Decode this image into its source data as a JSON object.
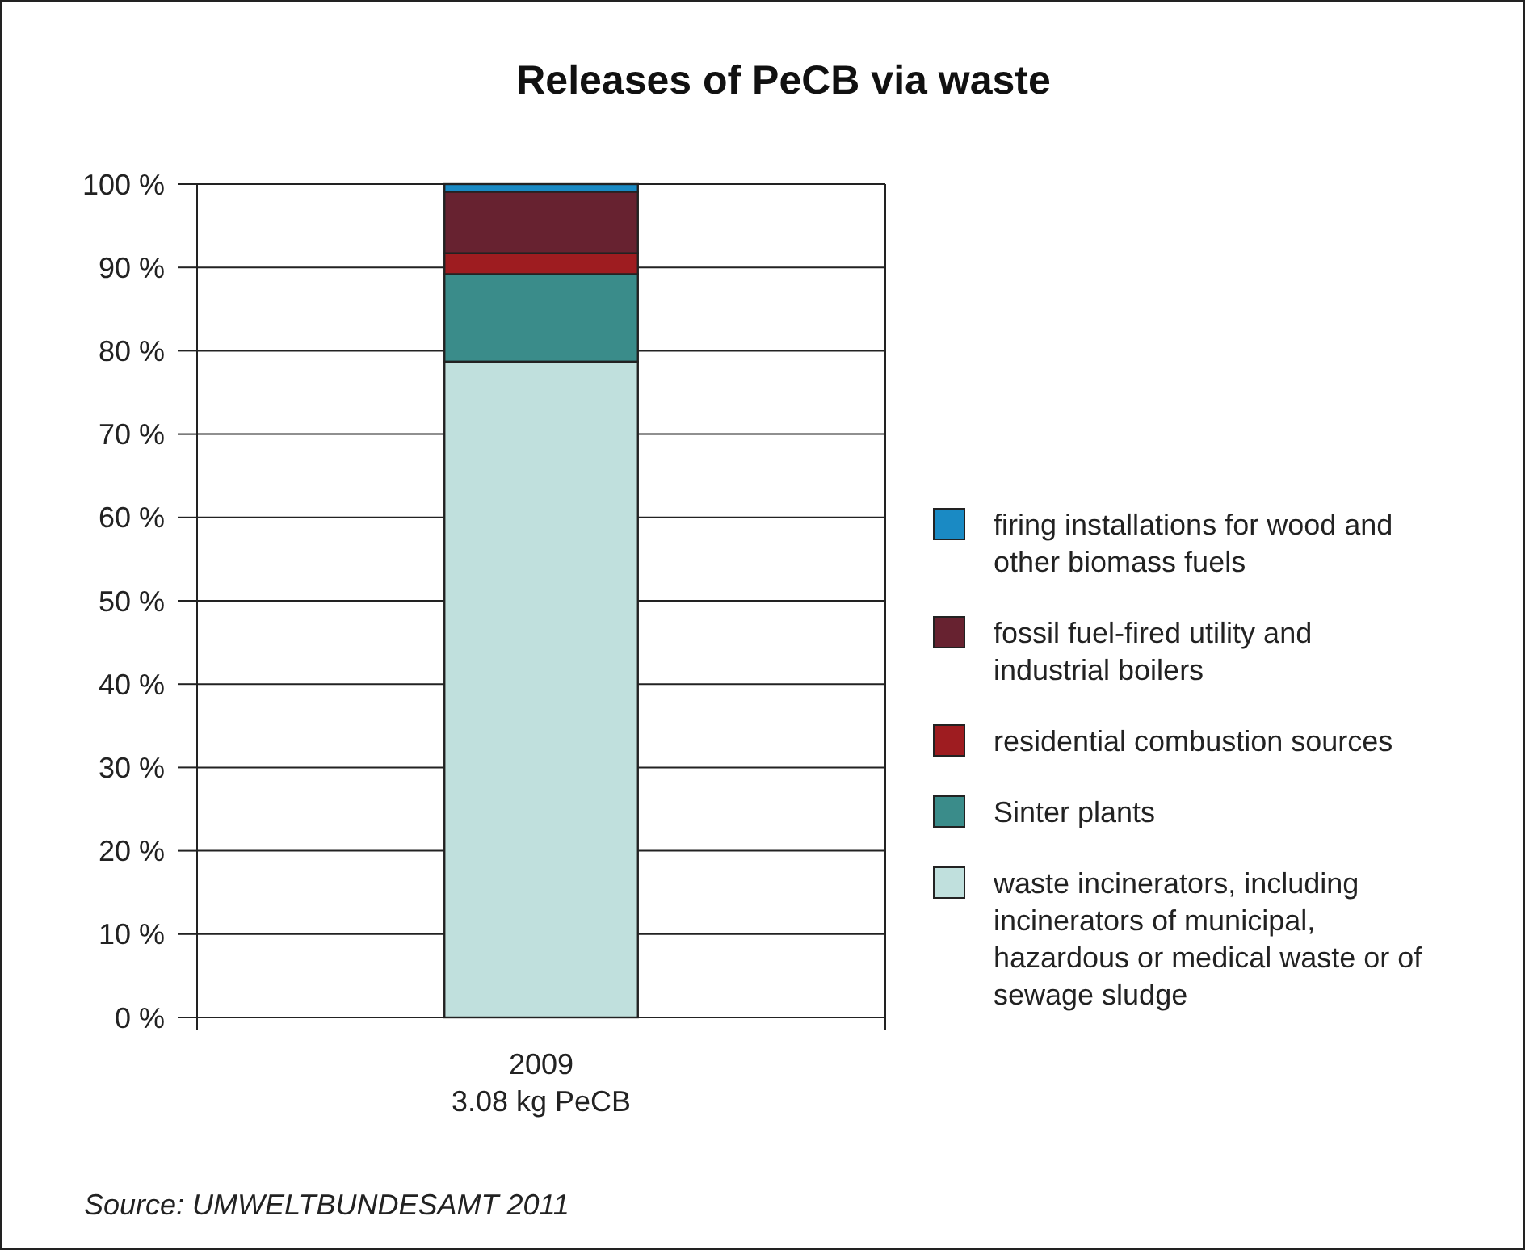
{
  "chart_data": {
    "type": "bar",
    "title": "Releases of PeCB via waste",
    "categories": [
      "2009\n3.08 kg PeCB"
    ],
    "stacked": true,
    "ylim": [
      0,
      100
    ],
    "yticks": [
      {
        "value": 0,
        "label": "0 %"
      },
      {
        "value": 10,
        "label": "10 %"
      },
      {
        "value": 20,
        "label": "20 %"
      },
      {
        "value": 30,
        "label": "30 %"
      },
      {
        "value": 40,
        "label": "40 %"
      },
      {
        "value": 50,
        "label": "50 %"
      },
      {
        "value": 60,
        "label": "60 %"
      },
      {
        "value": 70,
        "label": "70 %"
      },
      {
        "value": 80,
        "label": "80 %"
      },
      {
        "value": 90,
        "label": "90 %"
      },
      {
        "value": 100,
        "label": "100 %"
      }
    ],
    "grid": "y",
    "legend": "right",
    "series": [
      {
        "name": "waste incinerators, including incinerators of municipal, hazardous or medical waste or of sewage sludge",
        "color": "#c0e0dd",
        "values": [
          78.7
        ]
      },
      {
        "name": "Sinter plants",
        "color": "#3a8c8a",
        "values": [
          10.5
        ]
      },
      {
        "name": "residential combustion sources",
        "color": "#9e1c20",
        "values": [
          2.5
        ]
      },
      {
        "name": "fossil fuel-fired utility and industrial boilers",
        "color": "#672230",
        "values": [
          7.4
        ]
      },
      {
        "name": "firing installations for wood and other biomass fuels",
        "color": "#1a8ac4",
        "values": [
          0.9
        ]
      }
    ],
    "annotations": [
      "Source: UMWELTBUNDESAMT 2011"
    ]
  }
}
